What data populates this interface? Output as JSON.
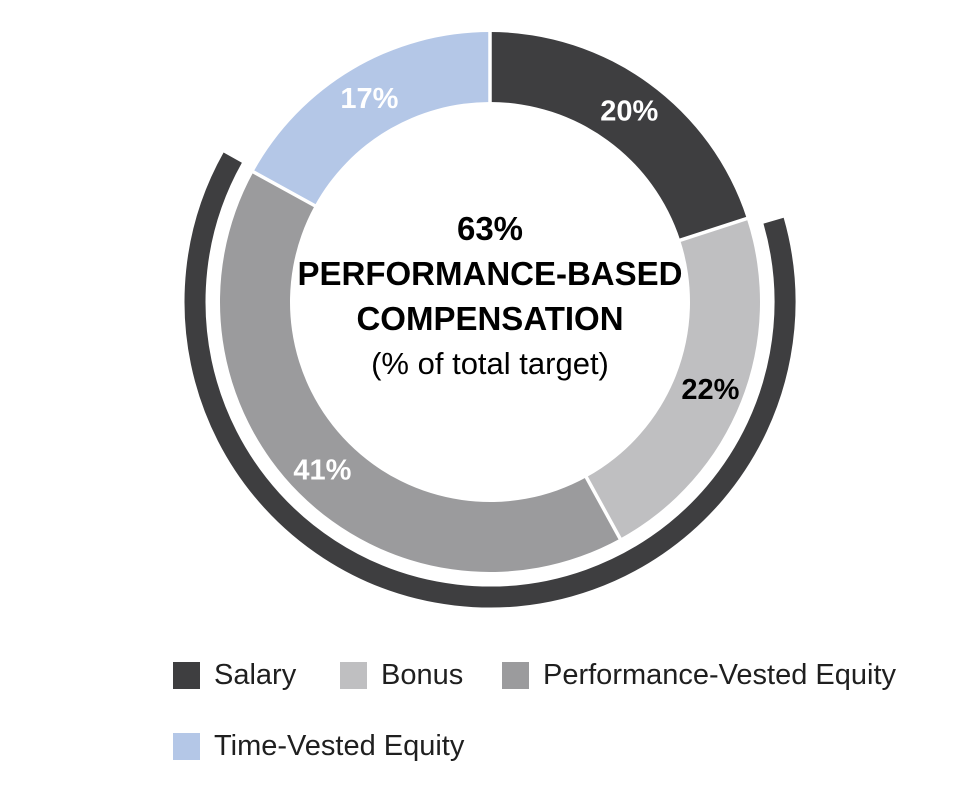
{
  "chart_data": {
    "type": "donut",
    "title": "",
    "center_text": {
      "value": "63%",
      "line2": "PERFORMANCE-BASED",
      "line3": "COMPENSATION",
      "line4": "(% of total target)"
    },
    "segments": [
      {
        "label": "Salary",
        "value": 20,
        "display": "20%",
        "color": "#3E3E40",
        "label_color": "#FFFFFF"
      },
      {
        "label": "Bonus",
        "value": 22,
        "display": "22%",
        "color": "#BFBFC1",
        "label_color": "#000000"
      },
      {
        "label": "Performance-Vested Equity",
        "value": 41,
        "display": "41%",
        "color": "#9B9B9D",
        "label_color": "#FFFFFF"
      },
      {
        "label": "Time-Vested Equity",
        "value": 17,
        "display": "17%",
        "color": "#B4C7E7",
        "label_color": "#FFFFFF"
      }
    ],
    "start_angle_deg": 0,
    "direction": "clockwise",
    "outer_arc": {
      "start_pct": 20,
      "end_pct": 83,
      "color": "#3E3E40"
    },
    "legend_rows": [
      [
        "Salary",
        "Bonus",
        "Performance-Vested Equity"
      ],
      [
        "Time-Vested Equity"
      ]
    ],
    "divider_color": "#FFFFFF",
    "background": "#FFFFFF"
  }
}
